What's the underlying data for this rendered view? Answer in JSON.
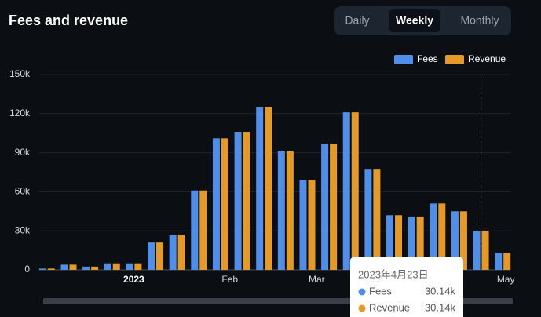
{
  "chart_data": {
    "type": "bar",
    "title": "Fees and revenue",
    "periods": [
      "Daily",
      "Weekly",
      "Monthly"
    ],
    "selected_period": 1,
    "x": [
      "2022-12-04",
      "2022-12-11",
      "2022-12-18",
      "2022-12-25",
      "2023-01-01",
      "2023-01-08",
      "2023-01-15",
      "2023-01-22",
      "2023-01-29",
      "2023-02-05",
      "2023-02-12",
      "2023-02-19",
      "2023-02-26",
      "2023-03-05",
      "2023-03-12",
      "2023-03-19",
      "2023-03-26",
      "2023-04-02",
      "2023-04-09",
      "2023-04-16",
      "2023-04-23",
      "2023-04-30"
    ],
    "series": [
      {
        "name": "Fees",
        "color": "#4f8fea",
        "values": [
          1000,
          4000,
          2500,
          5000,
          5000,
          21000,
          27000,
          61000,
          101000,
          106000,
          125000,
          91000,
          69000,
          97000,
          121000,
          77000,
          42000,
          41000,
          51000,
          45000,
          30140,
          13000
        ]
      },
      {
        "name": "Revenue",
        "color": "#e59a27",
        "values": [
          1000,
          4000,
          2500,
          5000,
          5000,
          21000,
          27000,
          61000,
          101000,
          106000,
          125000,
          91000,
          69000,
          97000,
          121000,
          77000,
          42000,
          41000,
          51000,
          45000,
          30140,
          13000
        ]
      }
    ],
    "xlim": [
      "2022-12-01",
      "2023-05-04"
    ],
    "xticks": [
      {
        "value": "2023-01-01",
        "label": "2023"
      },
      {
        "value": "2023-02-01",
        "label": "Feb"
      },
      {
        "value": "2023-03-01",
        "label": "Mar"
      },
      {
        "value": "2023-05-01",
        "label": "May"
      }
    ],
    "ylim": [
      0,
      150000
    ],
    "yticks": [
      {
        "value": 0,
        "label": "0"
      },
      {
        "value": 30000,
        "label": "30k"
      },
      {
        "value": 60000,
        "label": "60k"
      },
      {
        "value": 90000,
        "label": "90k"
      },
      {
        "value": 120000,
        "label": "120k"
      },
      {
        "value": 150000,
        "label": "150k"
      }
    ],
    "grid": true,
    "legend": "top-right",
    "tooltip": {
      "index": 20,
      "date": "2023年4月23日",
      "labels": [
        "30.14k",
        "30.14k"
      ]
    }
  }
}
